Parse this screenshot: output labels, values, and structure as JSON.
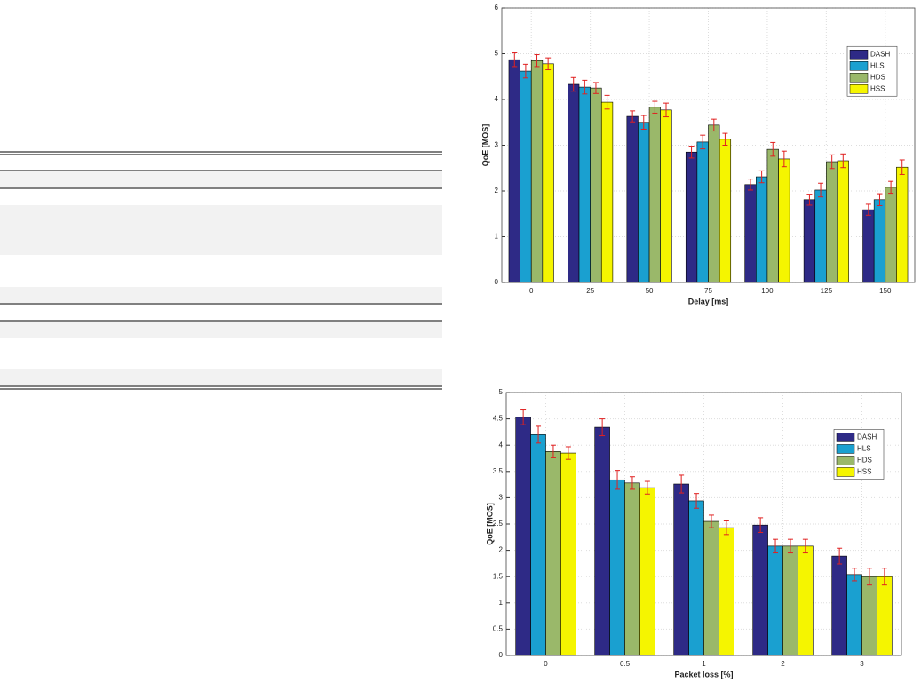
{
  "chart_data": [
    {
      "type": "bar",
      "xlabel": "Delay [ms]",
      "ylabel": "QoE [MOS]",
      "categories": [
        "0",
        "25",
        "50",
        "75",
        "100",
        "125",
        "150"
      ],
      "ylim": [
        0,
        6
      ],
      "yticks": [
        0,
        1,
        2,
        3,
        4,
        5,
        6
      ],
      "grid": true,
      "legend": "upper right",
      "series": [
        {
          "name": "DASH",
          "color": "#2e2a86",
          "values": [
            4.87,
            4.33,
            3.63,
            2.85,
            2.14,
            1.81,
            1.59
          ],
          "errors": [
            0.15,
            0.15,
            0.12,
            0.13,
            0.12,
            0.12,
            0.12
          ]
        },
        {
          "name": "HLS",
          "color": "#1aa0d0",
          "values": [
            4.62,
            4.27,
            3.5,
            3.07,
            2.31,
            2.02,
            1.81
          ],
          "errors": [
            0.15,
            0.15,
            0.15,
            0.15,
            0.13,
            0.15,
            0.13
          ]
        },
        {
          "name": "HDS",
          "color": "#9ab86a",
          "values": [
            4.85,
            4.25,
            3.83,
            3.44,
            2.91,
            2.64,
            2.08
          ],
          "errors": [
            0.13,
            0.12,
            0.13,
            0.13,
            0.15,
            0.15,
            0.13
          ]
        },
        {
          "name": "HSS",
          "color": "#f5f500",
          "values": [
            4.78,
            3.94,
            3.77,
            3.13,
            2.7,
            2.66,
            2.52
          ],
          "errors": [
            0.13,
            0.15,
            0.15,
            0.13,
            0.17,
            0.15,
            0.16
          ]
        }
      ]
    },
    {
      "type": "bar",
      "xlabel": "Packet loss [%]",
      "ylabel": "QoE [MOS]",
      "categories": [
        "0",
        "0.5",
        "1",
        "2",
        "3"
      ],
      "ylim": [
        0,
        5
      ],
      "yticks": [
        0,
        0.5,
        1,
        1.5,
        2,
        2.5,
        3,
        3.5,
        4,
        4.5,
        5
      ],
      "grid": true,
      "legend": "upper right",
      "series": [
        {
          "name": "DASH",
          "color": "#2e2a86",
          "values": [
            4.53,
            4.34,
            3.26,
            2.48,
            1.89
          ],
          "errors": [
            0.14,
            0.16,
            0.17,
            0.14,
            0.15
          ]
        },
        {
          "name": "HLS",
          "color": "#1aa0d0",
          "values": [
            4.2,
            3.34,
            2.94,
            2.08,
            1.54
          ],
          "errors": [
            0.16,
            0.18,
            0.14,
            0.13,
            0.12
          ]
        },
        {
          "name": "HDS",
          "color": "#9ab86a",
          "values": [
            3.88,
            3.28,
            2.55,
            2.08,
            1.5
          ],
          "errors": [
            0.12,
            0.12,
            0.12,
            0.13,
            0.16
          ]
        },
        {
          "name": "HSS",
          "color": "#f5f500",
          "values": [
            3.85,
            3.19,
            2.43,
            2.08,
            1.5
          ],
          "errors": [
            0.12,
            0.12,
            0.13,
            0.13,
            0.16
          ]
        }
      ]
    }
  ]
}
